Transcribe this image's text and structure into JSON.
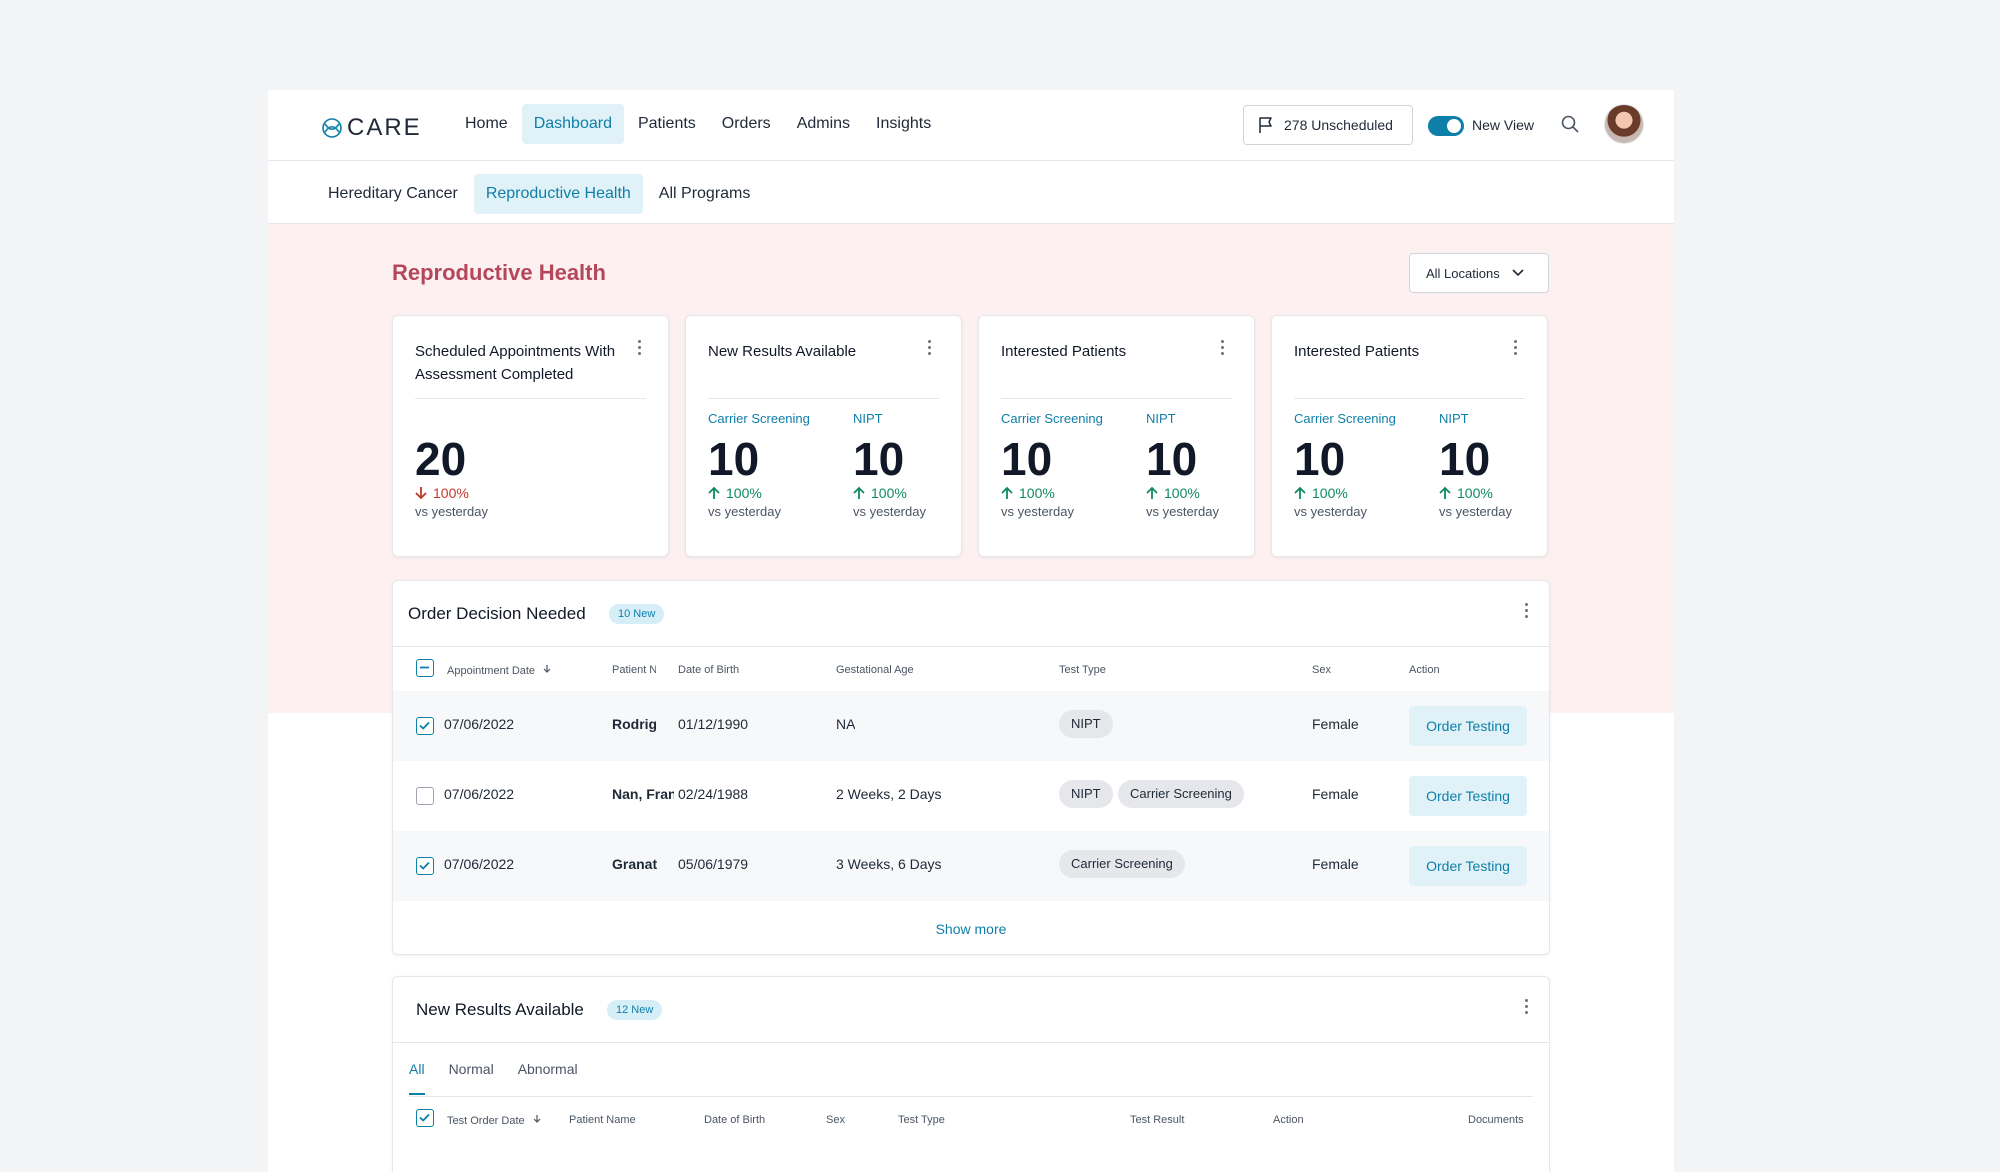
{
  "nav": {
    "logo_text": "CARE",
    "links": [
      "Home",
      "Dashboard",
      "Patients",
      "Orders",
      "Admins",
      "Insights"
    ],
    "active": "Dashboard",
    "unscheduled_label": "278 Unscheduled",
    "toggle_label": "New View",
    "toggle_on": true
  },
  "subnav": {
    "tabs": [
      "Hereditary Cancer",
      "Reproductive Health",
      "All Programs"
    ],
    "active": "Reproductive Health"
  },
  "page": {
    "title": "Reproductive Health",
    "locations_label": "All Locations"
  },
  "cards": [
    {
      "title": "Scheduled Appointments With Assessment Completed",
      "metrics": [
        {
          "label": "",
          "value": "20",
          "change": "100%",
          "direction": "down",
          "sub": "vs yesterday"
        }
      ]
    },
    {
      "title": "New Results Available",
      "metrics": [
        {
          "label": "Carrier Screening",
          "value": "10",
          "change": "100%",
          "direction": "up",
          "sub": "vs yesterday"
        },
        {
          "label": "NIPT",
          "value": "10",
          "change": "100%",
          "direction": "up",
          "sub": "vs yesterday"
        }
      ]
    },
    {
      "title": "Interested Patients",
      "metrics": [
        {
          "label": "Carrier Screening",
          "value": "10",
          "change": "100%",
          "direction": "up",
          "sub": "vs yesterday"
        },
        {
          "label": "NIPT",
          "value": "10",
          "change": "100%",
          "direction": "up",
          "sub": "vs yesterday"
        }
      ]
    },
    {
      "title": "Interested Patients",
      "metrics": [
        {
          "label": "Carrier Screening",
          "value": "10",
          "change": "100%",
          "direction": "up",
          "sub": "vs yesterday"
        },
        {
          "label": "NIPT",
          "value": "10",
          "change": "100%",
          "direction": "up",
          "sub": "vs yesterday"
        }
      ]
    }
  ],
  "orders": {
    "title": "Order Decision Needed",
    "badge": "10 New",
    "columns": [
      "Appointment Date",
      "Patient Name",
      "Date of Birth",
      "Gestational Age",
      "Test Type",
      "Sex",
      "Action"
    ],
    "rows": [
      {
        "checked": true,
        "date": "07/06/2022",
        "patient": "Rodriguez",
        "dob": "01/12/1990",
        "ga": "NA",
        "tests": [
          "NIPT"
        ],
        "sex": "Female",
        "action": "Order Testing"
      },
      {
        "checked": false,
        "date": "07/06/2022",
        "patient": "Nan, Frances",
        "dob": "02/24/1988",
        "ga": "2 Weeks, 2 Days",
        "tests": [
          "NIPT",
          "Carrier Screening"
        ],
        "sex": "Female",
        "action": "Order Testing"
      },
      {
        "checked": true,
        "date": "07/06/2022",
        "patient": "Granat",
        "dob": "05/06/1979",
        "ga": "3 Weeks, 6 Days",
        "tests": [
          "Carrier Screening"
        ],
        "sex": "Female",
        "action": "Order Testing"
      }
    ],
    "show_more": "Show more"
  },
  "results": {
    "title": "New Results Available",
    "badge": "12 New",
    "tabs": [
      "All",
      "Normal",
      "Abnormal"
    ],
    "active_tab": "All",
    "columns": [
      "Test Order Date",
      "Patient Name",
      "Date of Birth",
      "Sex",
      "Test Type",
      "Test Result",
      "Action",
      "Documents"
    ]
  },
  "colors": {
    "accent": "#0e7fa8",
    "title_red": "#b5475c",
    "band_pink": "#fdf0f1",
    "up_green": "#0f8a5f",
    "down_red": "#c0392b"
  }
}
